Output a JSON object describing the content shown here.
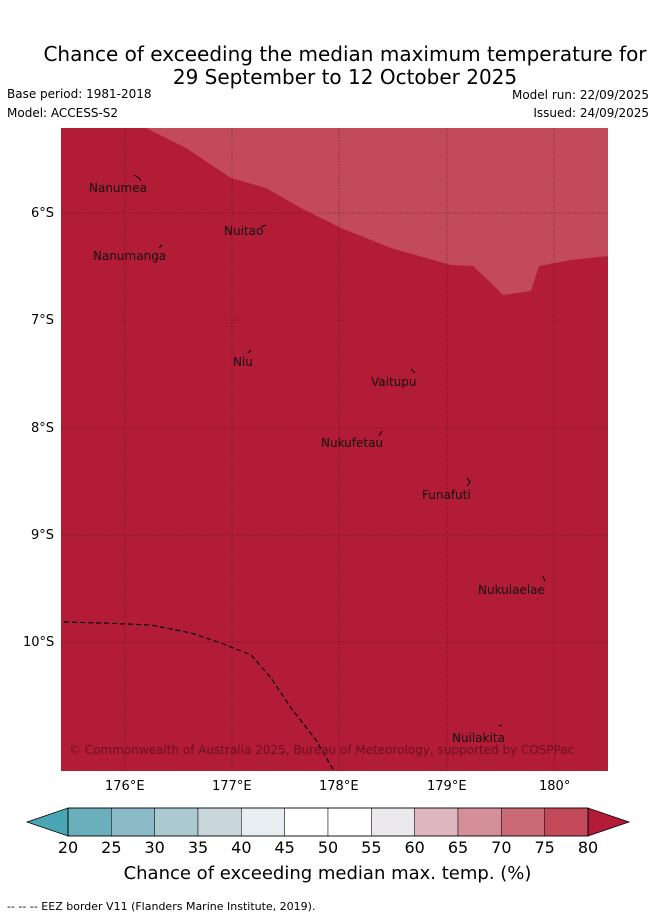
{
  "title_line1": "Chance of exceeding the median maximum temperature for",
  "title_line2": "29 September to 12 October 2025",
  "base_period": "Base period: 1981-2018",
  "model": "Model: ACCESS-S2",
  "model_run": "Model run: 22/09/2025",
  "issued": "Issued: 24/09/2025",
  "copyright": "© Commonwealth of Australia 2025, Bureau of Meteorology, supported by COSPPac",
  "islands": [
    "Nanumea",
    "Nuitao",
    "Nanumanga",
    "Niu",
    "Vaitupu",
    "Nukufetau",
    "Funafuti",
    "Nukulaelae",
    "Nuilakita"
  ],
  "lon_ticks": [
    "176°E",
    "177°E",
    "178°E",
    "179°E",
    "180°"
  ],
  "lat_ticks": [
    "6°S",
    "7°S",
    "8°S",
    "9°S",
    "10°S"
  ],
  "colorbar": {
    "ticks": [
      "20",
      "25",
      "30",
      "35",
      "40",
      "45",
      "50",
      "55",
      "60",
      "65",
      "70",
      "75",
      "80"
    ],
    "colors": [
      "#4aa5b4",
      "#6bafbd",
      "#8bbbc6",
      "#abc9cf",
      "#c9d7dc",
      "#e8eff2",
      "#ffffff",
      "#ffffff",
      "#ebe9ec",
      "#deb6bf",
      "#d48f98",
      "#c96a74",
      "#c34a5a",
      "#b31c37"
    ],
    "label": "Chance of exceeding median max. temp. (%)"
  },
  "footer": "--  --  -- EEZ border V11 (Flanders Marine Institute, 2019)."
}
